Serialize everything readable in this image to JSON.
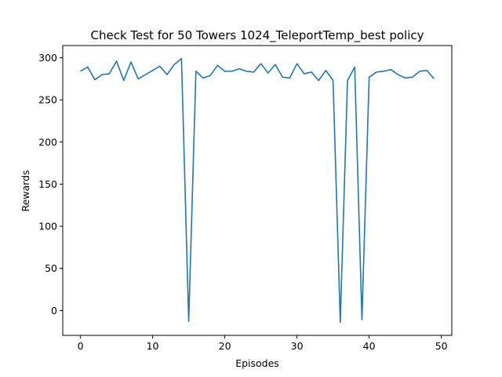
{
  "chart_data": {
    "type": "line",
    "title": "Check Test for 50 Towers 1024_TeleportTemp_best policy",
    "xlabel": "Episodes",
    "ylabel": "Rewards",
    "xlim": [
      -2.45,
      51.45
    ],
    "ylim": [
      -29.5,
      314.5
    ],
    "xticks": [
      0,
      10,
      20,
      30,
      40,
      50
    ],
    "yticks": [
      0,
      50,
      100,
      150,
      200,
      250,
      300
    ],
    "grid": false,
    "series": [
      {
        "color": "#1f77b4",
        "x": [
          0,
          1,
          2,
          3,
          4,
          5,
          6,
          7,
          8,
          9,
          10,
          11,
          12,
          13,
          14,
          15,
          16,
          17,
          18,
          19,
          20,
          21,
          22,
          23,
          24,
          25,
          26,
          27,
          28,
          29,
          30,
          31,
          32,
          33,
          34,
          35,
          36,
          37,
          38,
          39,
          40,
          41,
          42,
          43,
          44,
          45,
          46,
          47,
          48,
          49
        ],
        "values": [
          284,
          289,
          274,
          280,
          281,
          296,
          273,
          295,
          275,
          280,
          285,
          290,
          280,
          292,
          299,
          -13,
          284,
          276,
          279,
          291,
          284,
          284,
          287,
          284,
          283,
          293,
          282,
          292,
          277,
          276,
          293,
          281,
          283,
          273,
          285,
          273,
          -14,
          273,
          289,
          -11,
          277,
          283,
          284,
          286,
          280,
          276,
          277,
          284,
          285,
          275
        ]
      }
    ]
  }
}
